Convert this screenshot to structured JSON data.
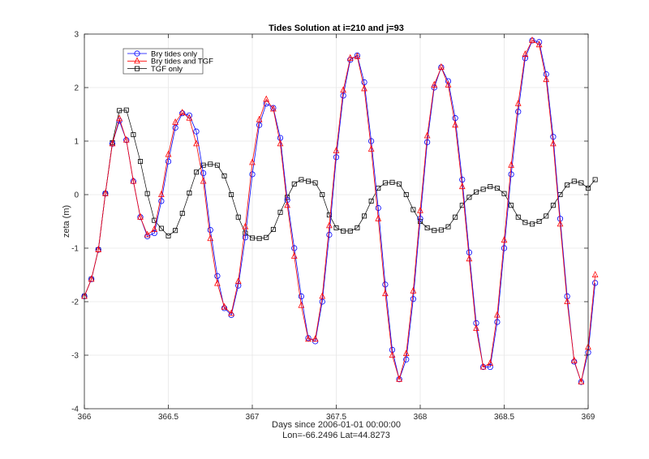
{
  "chart_data": {
    "type": "line",
    "title": "Tides Solution at  i=210 and j=93",
    "xlabel": "Days since 2006-01-01 00:00:00",
    "xlabel2": "Lon=-66.2496     Lat=44.8273",
    "ylabel": "zeta (m)",
    "xlim": [
      366,
      369
    ],
    "ylim": [
      -4,
      3
    ],
    "xticks": [
      366,
      366.5,
      367,
      367.5,
      368,
      368.5,
      369
    ],
    "xtick_labels": [
      "366",
      "366.5",
      "367",
      "367.5",
      "368",
      "368.5",
      "369"
    ],
    "yticks": [
      -4,
      -3,
      -2,
      -1,
      0,
      1,
      2,
      3
    ],
    "ytick_labels": [
      "-4",
      "-3",
      "-2",
      "-1",
      "0",
      "1",
      "2",
      "3"
    ],
    "grid": true,
    "legend_position": "top-left",
    "x_start": 366,
    "x_step": 0.041667,
    "series": [
      {
        "name": "Bry tides only",
        "color": "#0000ff",
        "marker": "circle",
        "values": [
          -1.9,
          -1.58,
          -1.03,
          0.02,
          0.95,
          1.38,
          1.02,
          0.25,
          -0.42,
          -0.78,
          -0.72,
          -0.12,
          0.62,
          1.25,
          1.52,
          1.48,
          1.18,
          0.4,
          -0.66,
          -1.52,
          -2.12,
          -2.25,
          -1.7,
          -0.8,
          0.38,
          1.3,
          1.7,
          1.62,
          1.06,
          -0.1,
          -1.0,
          -1.9,
          -2.68,
          -2.74,
          -2.0,
          -0.75,
          0.7,
          1.85,
          2.52,
          2.6,
          2.1,
          1.0,
          -0.25,
          -1.68,
          -2.9,
          -3.45,
          -3.08,
          -1.95,
          -0.45,
          0.98,
          2.0,
          2.38,
          2.12,
          1.43,
          0.28,
          -1.08,
          -2.4,
          -3.22,
          -3.22,
          -2.38,
          -1.0,
          0.38,
          1.55,
          2.55,
          2.88,
          2.85,
          2.25,
          1.08,
          -0.45,
          -1.9,
          -3.12,
          -3.5,
          -2.95,
          -1.65
        ]
      },
      {
        "name": "Bry tides and TGF",
        "color": "#ff0000",
        "marker": "triangle",
        "values": [
          -1.9,
          -1.58,
          -1.03,
          0.02,
          0.95,
          1.42,
          1.02,
          0.25,
          -0.42,
          -0.75,
          -0.65,
          0.0,
          0.75,
          1.35,
          1.53,
          1.43,
          0.95,
          0.25,
          -0.82,
          -1.66,
          -2.1,
          -2.22,
          -1.62,
          -0.6,
          0.6,
          1.4,
          1.78,
          1.6,
          0.95,
          -0.2,
          -1.15,
          -2.07,
          -2.7,
          -2.7,
          -1.9,
          -0.58,
          0.82,
          1.95,
          2.55,
          2.58,
          1.98,
          0.85,
          -0.45,
          -1.85,
          -3.0,
          -3.45,
          -2.97,
          -1.8,
          -0.3,
          1.1,
          2.05,
          2.38,
          2.05,
          1.3,
          0.15,
          -1.2,
          -2.5,
          -3.22,
          -3.15,
          -2.25,
          -0.85,
          0.55,
          1.7,
          2.62,
          2.88,
          2.8,
          2.15,
          0.95,
          -0.55,
          -2.0,
          -3.1,
          -3.5,
          -2.85,
          -1.5
        ]
      },
      {
        "name": "TGF only",
        "color": "#000000",
        "marker": "square",
        "values": [
          -1.9,
          -1.58,
          -1.03,
          0.02,
          0.97,
          1.57,
          1.58,
          1.12,
          0.62,
          0.02,
          -0.48,
          -0.63,
          -0.77,
          -0.67,
          -0.35,
          0.03,
          0.42,
          0.55,
          0.57,
          0.55,
          0.35,
          0.0,
          -0.42,
          -0.72,
          -0.81,
          -0.82,
          -0.8,
          -0.65,
          -0.33,
          -0.05,
          0.2,
          0.28,
          0.25,
          0.22,
          0.0,
          -0.38,
          -0.62,
          -0.68,
          -0.68,
          -0.62,
          -0.4,
          -0.12,
          0.12,
          0.22,
          0.23,
          0.2,
          0.0,
          -0.28,
          -0.5,
          -0.62,
          -0.67,
          -0.66,
          -0.6,
          -0.42,
          -0.2,
          -0.05,
          0.05,
          0.1,
          0.15,
          0.12,
          0.02,
          -0.2,
          -0.42,
          -0.52,
          -0.55,
          -0.5,
          -0.4,
          -0.2,
          0.0,
          0.18,
          0.25,
          0.22,
          0.12,
          0.28
        ]
      }
    ]
  }
}
